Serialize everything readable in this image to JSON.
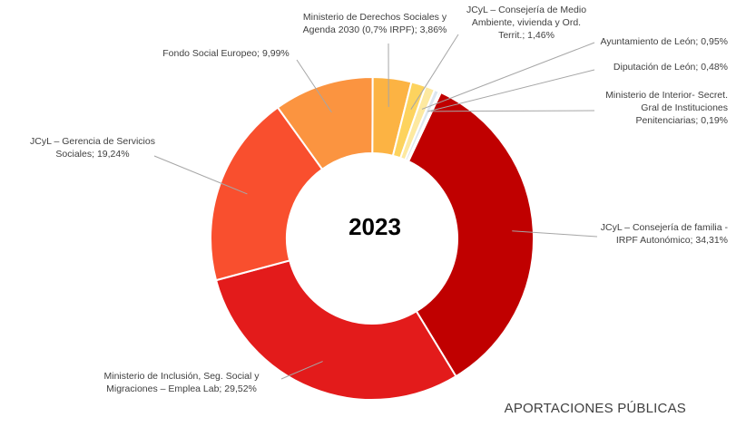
{
  "chart_data": {
    "type": "pie",
    "donut": true,
    "center_text": "2023",
    "footer": "APORTACIONES PÚBLICAS",
    "slices": [
      {
        "lines": [
          "JCyL – Consejería de familia -",
          "IRPF Autonómico; 34,31%"
        ],
        "value": 34.31,
        "color": "#c00000"
      },
      {
        "lines": [
          "Ministerio de Inclusión, Seg. Social y",
          "Migraciones – Emplea Lab; 29,52%"
        ],
        "value": 29.52,
        "color": "#e31b1b"
      },
      {
        "lines": [
          "JCyL – Gerencia de Servicios",
          "Sociales; 19,24%"
        ],
        "value": 19.24,
        "color": "#f94f2e"
      },
      {
        "lines": [
          "Fondo Social Europeo; 9,99%"
        ],
        "value": 9.99,
        "color": "#fb9440"
      },
      {
        "lines": [
          "Ministerio de Derechos Sociales y",
          "Agenda 2030 (0,7% IRPF); 3,86%"
        ],
        "value": 3.86,
        "color": "#fcb343"
      },
      {
        "lines": [
          "JCyL – Consejería de Medio",
          "Ambiente, vivienda y Ord.",
          "Territ.; 1,46%"
        ],
        "value": 1.46,
        "color": "#fdd35e"
      },
      {
        "lines": [
          "Ayuntamiento de León; 0,95%"
        ],
        "value": 0.95,
        "color": "#fde9a0"
      },
      {
        "lines": [
          "Diputación de León; 0,48%"
        ],
        "value": 0.48,
        "color": "#dce6ef"
      },
      {
        "lines": [
          "Ministerio de Interior- Secret.",
          "Gral de Instituciones",
          "Penitenciarias; 0,19%"
        ],
        "value": 0.19,
        "color": "#8c8c8c"
      }
    ]
  }
}
